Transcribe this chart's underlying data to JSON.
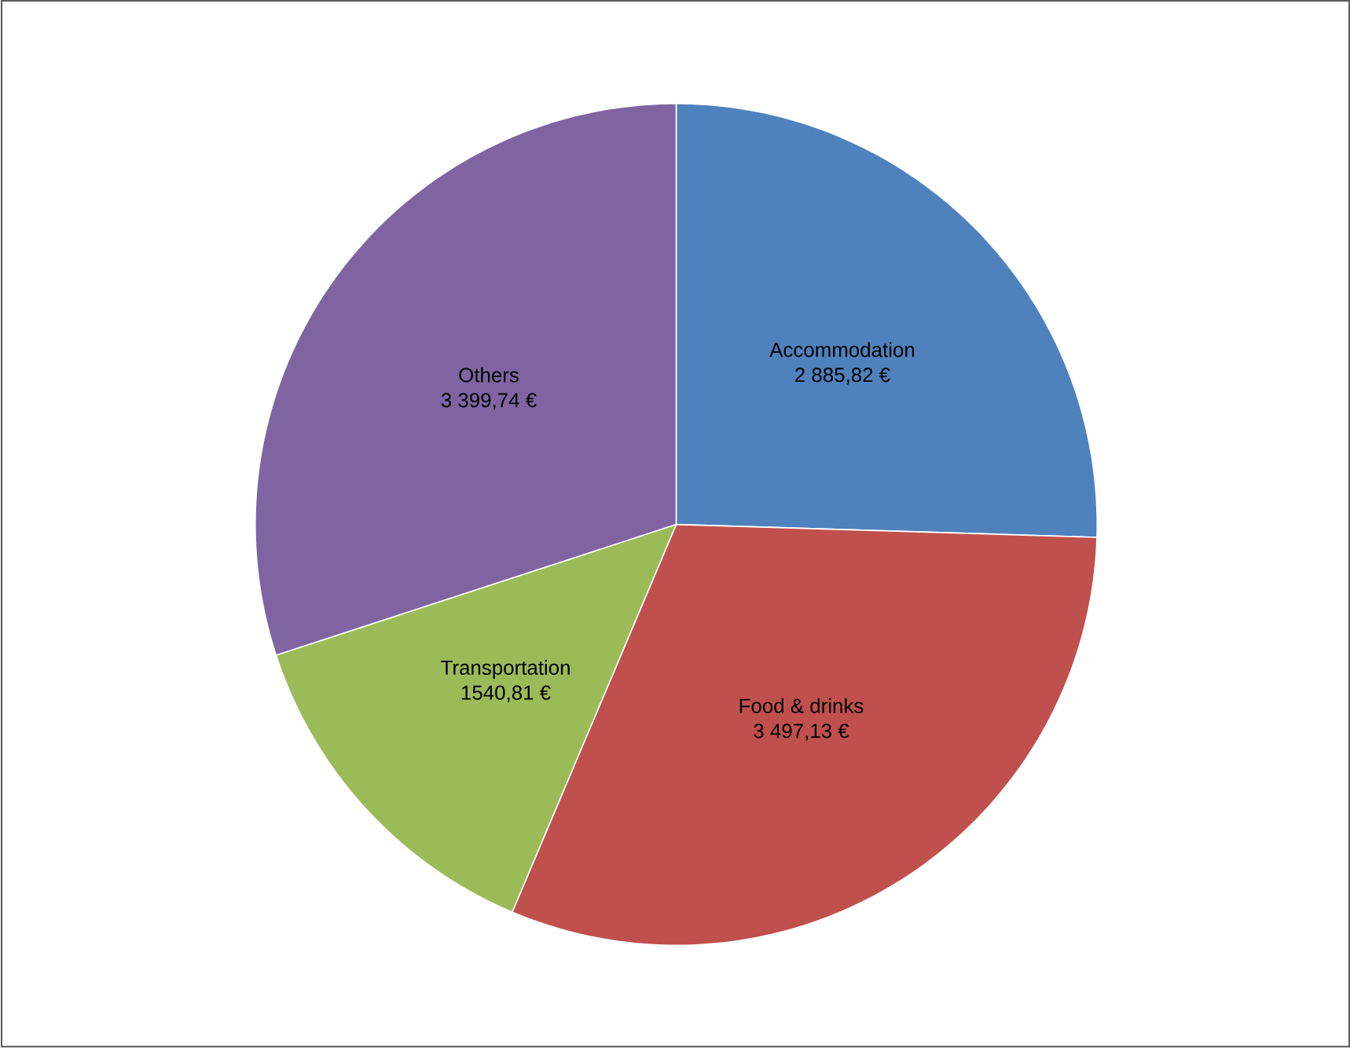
{
  "chart_data": {
    "type": "pie",
    "categories": [
      "Accommodation",
      "Food & drinks",
      "Transportation",
      "Others"
    ],
    "values": [
      2885.82,
      3497.13,
      1540.81,
      3399.74
    ],
    "colors": [
      "#4f81bd",
      "#c0504d",
      "#9bbb59",
      "#8064a2"
    ],
    "value_labels": [
      "2 885,82 €",
      "3 497,13 €",
      "1540,81 €",
      "3 399,74 €"
    ]
  }
}
